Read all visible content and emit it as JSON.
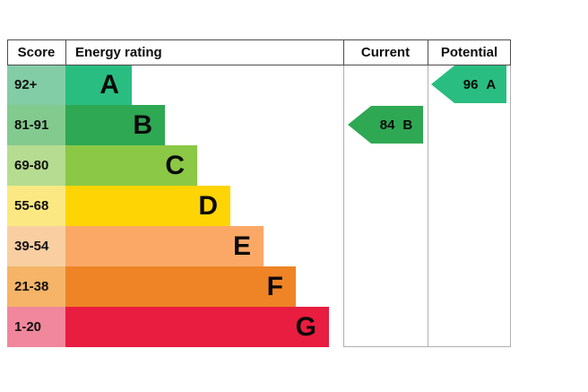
{
  "header": {
    "score": "Score",
    "energy_rating": "Energy rating",
    "current": "Current",
    "potential": "Potential"
  },
  "chart_data": {
    "type": "bar",
    "columns": [
      "Score",
      "Energy rating",
      "Current",
      "Potential"
    ],
    "bands": [
      {
        "label": "A",
        "score_range": "92+",
        "color": "#2abd81",
        "score_cell_color": "#82cca6"
      },
      {
        "label": "B",
        "score_range": "81-91",
        "color": "#2ea853",
        "score_cell_color": "#83ca8e"
      },
      {
        "label": "C",
        "score_range": "69-80",
        "color": "#8bc845",
        "score_cell_color": "#b5dc90"
      },
      {
        "label": "D",
        "score_range": "55-68",
        "color": "#ffd405",
        "score_cell_color": "#fce882"
      },
      {
        "label": "E",
        "score_range": "39-54",
        "color": "#fba867",
        "score_cell_color": "#f9cfa2"
      },
      {
        "label": "F",
        "score_range": "21-38",
        "color": "#ee8426",
        "score_cell_color": "#f5b467"
      },
      {
        "label": "G",
        "score_range": "1-20",
        "color": "#e91d40",
        "score_cell_color": "#f0879c"
      }
    ],
    "current": {
      "score": "84",
      "band": "B",
      "color": "#2ea853"
    },
    "potential": {
      "score": "96",
      "band": "A",
      "color": "#2abd81"
    }
  }
}
